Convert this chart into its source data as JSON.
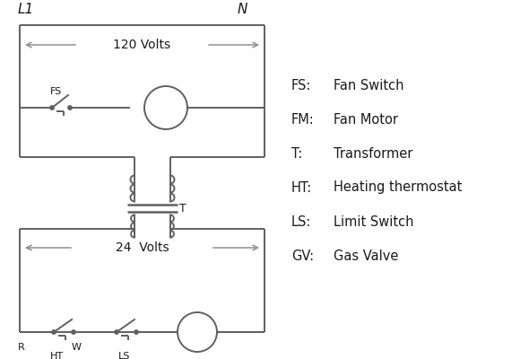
{
  "bg_color": "#ffffff",
  "line_color": "#606060",
  "text_color": "#1a1a1a",
  "legend_items": [
    [
      "FS:",
      "Fan Switch"
    ],
    [
      "FM:",
      "Fan Motor"
    ],
    [
      "T:",
      "Transformer"
    ],
    [
      "HT:",
      "Heating thermostat"
    ],
    [
      "LS:",
      "Limit Switch"
    ],
    [
      "GV:",
      "Gas Valve"
    ]
  ],
  "L1_label": "L1",
  "N_label": "N",
  "v120_label": "120 Volts",
  "v24_label": "24  Volts",
  "T_label": "T"
}
